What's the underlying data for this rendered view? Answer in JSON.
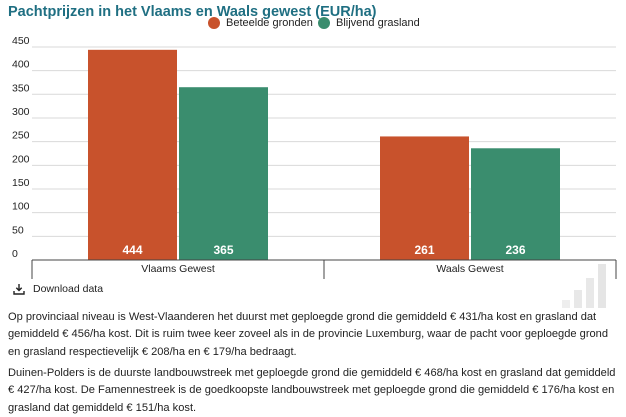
{
  "title": "Pachtprijzen in het Vlaams en Waals gewest (EUR/ha)",
  "download_label": "Download data",
  "colors": {
    "series1": "#c8522c",
    "series2": "#3a8d6e",
    "title": "#1f6f82"
  },
  "chart_data": {
    "type": "bar",
    "title": "Pachtprijzen in het Vlaams en Waals gewest (EUR/ha)",
    "xlabel": "",
    "ylabel": "",
    "categories": [
      "Vlaams Gewest",
      "Waals Gewest"
    ],
    "series": [
      {
        "name": "Beteelde gronden",
        "values": [
          444,
          261
        ],
        "color": "#c8522c"
      },
      {
        "name": "Blijvend grasland",
        "values": [
          365,
          236
        ],
        "color": "#3a8d6e"
      }
    ],
    "yticks": [
      0,
      50,
      100,
      150,
      200,
      250,
      300,
      350,
      400,
      450
    ],
    "ylim": [
      0,
      470
    ],
    "grid": true,
    "legend_position": "top-center",
    "data_labels": true
  },
  "paragraphs": [
    "Op provinciaal niveau is West-Vlaanderen het duurst met geploegde grond die gemiddeld € 431/ha kost en grasland dat gemiddeld € 456/ha kost. Dit is ruim twee keer zoveel als in de provincie Luxemburg, waar de pacht voor geploegde grond en grasland respectievelijk € 208/ha en € 179/ha bedraagt.",
    "Duinen-Polders is de duurste landbouwstreek met geploegde grond die gemiddeld € 468/ha kost en grasland dat gemiddeld € 427/ha kost. De Famennestreek is de goedkoopste landbouwstreek met geploegde grond die gemiddeld € 176/ha kost en grasland dat gemiddeld € 151/ha kost."
  ]
}
